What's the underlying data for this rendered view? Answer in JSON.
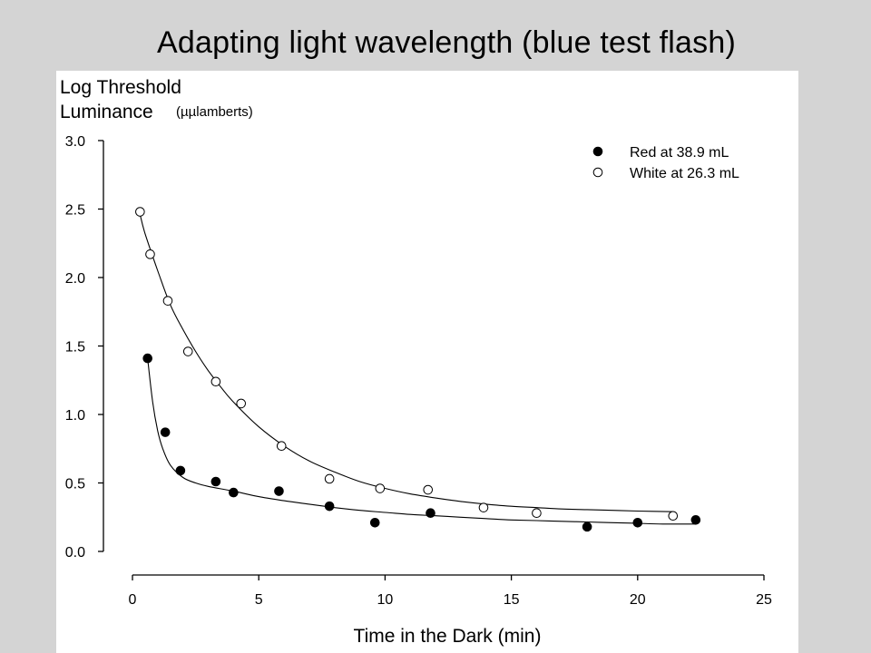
{
  "slide": {
    "title": "Adapting light wavelength (blue test flash)"
  },
  "chart_data": {
    "type": "scatter",
    "ylabel_line1": "Log Threshold",
    "ylabel_line2": "Luminance",
    "ylabel_unit": "(µµlamberts)",
    "xlabel": "Time in the Dark (min)",
    "xlim": [
      0,
      25
    ],
    "ylim": [
      0,
      3.0
    ],
    "xticks": [
      0,
      5,
      10,
      15,
      20,
      25
    ],
    "yticks": [
      0.0,
      0.5,
      1.0,
      1.5,
      2.0,
      2.5,
      3.0
    ],
    "xtick_labels": [
      "0",
      "5",
      "10",
      "15",
      "20",
      "25"
    ],
    "ytick_labels": [
      "0.0",
      "0.5",
      "1.0",
      "1.5",
      "2.0",
      "2.5",
      "3.0"
    ],
    "grid": false,
    "legend_position": "top-right",
    "series": [
      {
        "name": "Red at 38.9 mL",
        "marker": "filled-circle",
        "color": "#000000",
        "x": [
          0.6,
          1.3,
          1.9,
          3.3,
          4.0,
          5.8,
          7.8,
          9.6,
          11.8,
          18.0,
          20.0,
          22.3
        ],
        "y": [
          1.41,
          0.87,
          0.59,
          0.51,
          0.43,
          0.44,
          0.33,
          0.21,
          0.28,
          0.18,
          0.21,
          0.23
        ],
        "fit_x": [
          0.6,
          0.8,
          1.0,
          1.2,
          1.5,
          2.0,
          2.5,
          3.0,
          4.0,
          5.0,
          6.0,
          7.0,
          8.0,
          9.0,
          10.0,
          11.0,
          12.0,
          13.0,
          14.0,
          15.0,
          16.0,
          17.0,
          18.0,
          19.0,
          20.0,
          21.0,
          22.3
        ],
        "fit_y": [
          1.41,
          1.09,
          0.88,
          0.75,
          0.63,
          0.54,
          0.5,
          0.475,
          0.44,
          0.4,
          0.37,
          0.345,
          0.32,
          0.3,
          0.285,
          0.27,
          0.26,
          0.25,
          0.24,
          0.23,
          0.225,
          0.22,
          0.215,
          0.21,
          0.205,
          0.2,
          0.2
        ]
      },
      {
        "name": "White at 26.3 mL",
        "marker": "open-circle",
        "color": "#000000",
        "x": [
          0.3,
          0.7,
          1.4,
          2.2,
          3.3,
          4.3,
          5.9,
          7.8,
          9.8,
          11.7,
          13.9,
          16.0,
          21.4
        ],
        "y": [
          2.48,
          2.17,
          1.83,
          1.46,
          1.24,
          1.08,
          0.77,
          0.53,
          0.46,
          0.45,
          0.32,
          0.28,
          0.26
        ],
        "fit_x": [
          0.3,
          0.5,
          1.0,
          1.5,
          2.0,
          2.5,
          3.0,
          3.5,
          4.0,
          5.0,
          6.0,
          7.0,
          8.0,
          9.0,
          10.0,
          11.0,
          12.0,
          13.0,
          14.0,
          15.0,
          16.0,
          17.0,
          18.0,
          19.0,
          20.0,
          21.4
        ],
        "fit_y": [
          2.46,
          2.32,
          2.05,
          1.8,
          1.62,
          1.46,
          1.32,
          1.2,
          1.09,
          0.91,
          0.77,
          0.66,
          0.58,
          0.51,
          0.46,
          0.42,
          0.39,
          0.365,
          0.345,
          0.33,
          0.32,
          0.31,
          0.305,
          0.3,
          0.295,
          0.29
        ]
      }
    ]
  }
}
